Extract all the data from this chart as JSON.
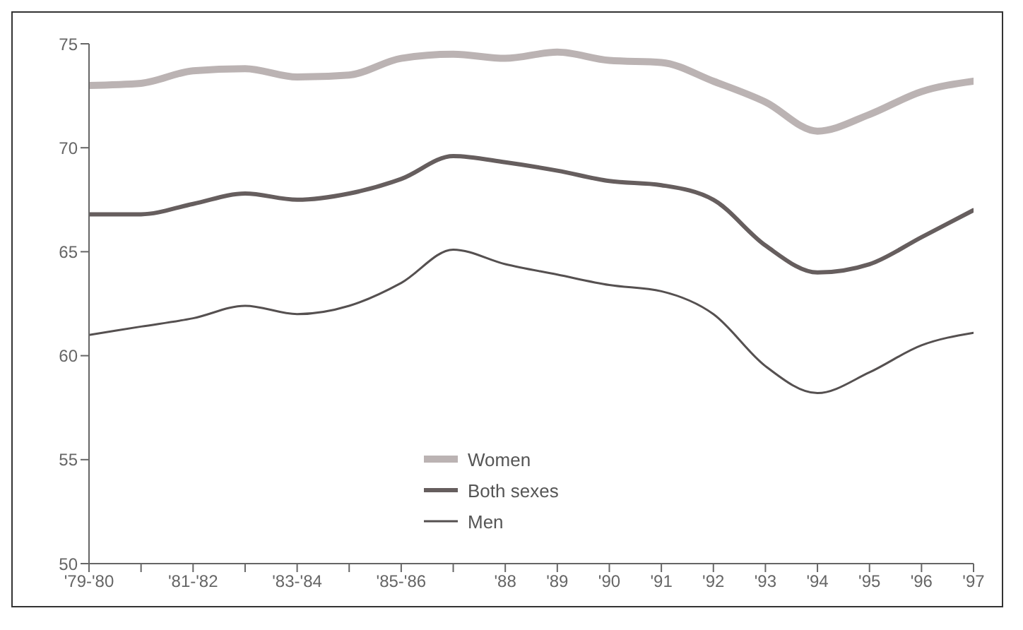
{
  "chart_data": {
    "type": "line",
    "categories": [
      "'79-'80",
      null,
      "'81-'82",
      null,
      "'83-'84",
      null,
      "'85-'86",
      null,
      "'88",
      "'89",
      "'90",
      "'91",
      "'92",
      "'93",
      "'94",
      "'95",
      "'96",
      "'97"
    ],
    "series": [
      {
        "name": "Women",
        "color": "#bbb3b3",
        "values": [
          73.0,
          73.1,
          73.7,
          73.8,
          73.4,
          73.5,
          74.3,
          74.5,
          74.3,
          74.6,
          74.2,
          74.1,
          73.2,
          72.2,
          70.8,
          71.6,
          72.7,
          73.2
        ]
      },
      {
        "name": "Both sexes",
        "color": "#665e5e",
        "values": [
          66.8,
          66.8,
          67.3,
          67.8,
          67.5,
          67.8,
          68.5,
          69.6,
          69.3,
          68.9,
          68.4,
          68.2,
          67.5,
          65.3,
          64.0,
          64.4,
          65.7,
          67.0
        ]
      },
      {
        "name": "Men",
        "color": "#555050",
        "values": [
          61.0,
          61.4,
          61.8,
          62.4,
          62.0,
          62.4,
          63.5,
          65.1,
          64.4,
          63.9,
          63.4,
          63.1,
          62.0,
          59.5,
          58.2,
          59.2,
          60.5,
          61.1
        ]
      }
    ],
    "ylim": [
      50,
      75
    ],
    "yticks": [
      50,
      55,
      60,
      65,
      70,
      75
    ],
    "grid": false,
    "legend": "bottom",
    "marker": "none",
    "line_style": "solid"
  }
}
